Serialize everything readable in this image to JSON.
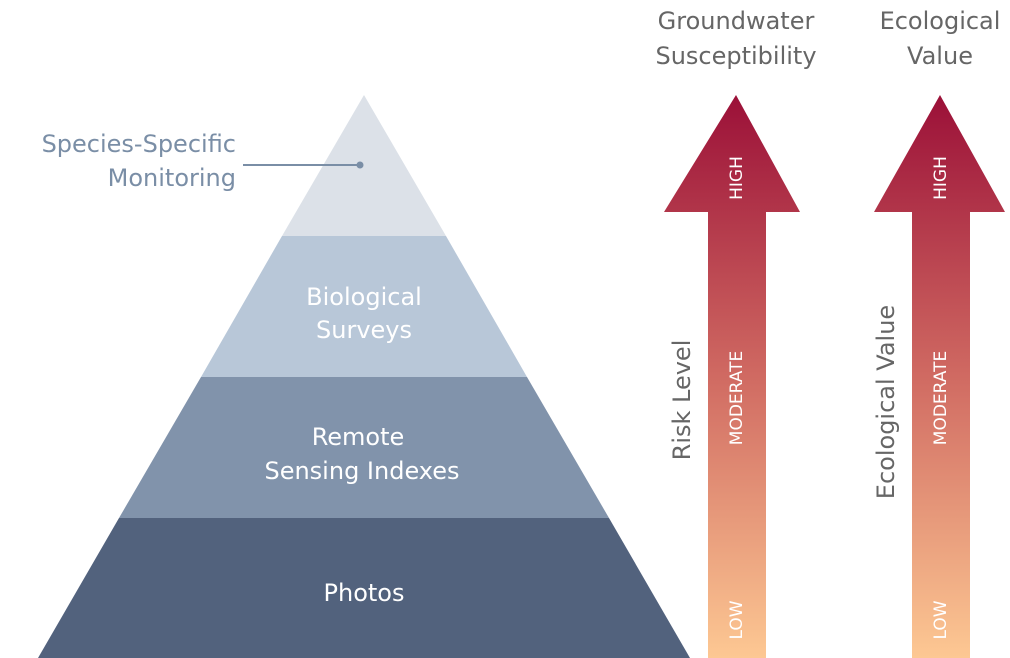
{
  "pyramid": {
    "levels": [
      {
        "label": [
          "Species-Specific",
          "Monitoring"
        ]
      },
      {
        "label": [
          "Biological",
          "Surveys"
        ]
      },
      {
        "label": [
          "Remote",
          "Sensing Indexes"
        ]
      },
      {
        "label": [
          "Photos"
        ]
      }
    ]
  },
  "arrows": [
    {
      "title": [
        "Groundwater",
        "Susceptibility"
      ],
      "axis_label": "Risk Level",
      "levels": [
        "HIGH",
        "MODERATE",
        "LOW"
      ]
    },
    {
      "title": [
        "Ecological",
        "Value"
      ],
      "axis_label": "Ecological Value",
      "levels": [
        "HIGH",
        "MODERATE",
        "LOW"
      ]
    }
  ]
}
